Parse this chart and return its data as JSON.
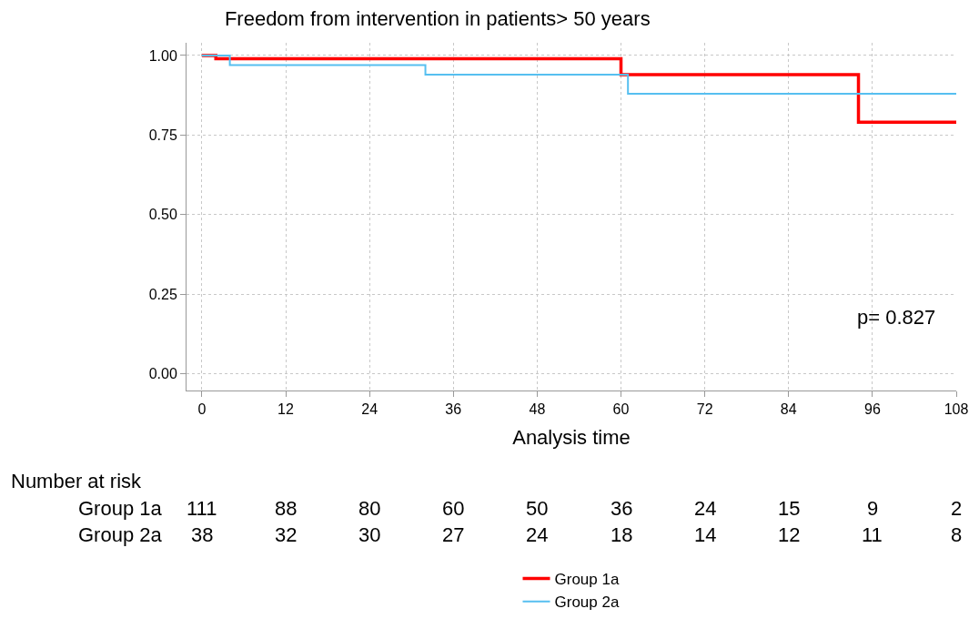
{
  "chart_data": {
    "type": "step",
    "title": "Freedom from intervention in patients> 50 years",
    "xlabel": "Analysis time",
    "series": [
      {
        "name": "Group 1a",
        "color": "#ff0000",
        "x": [
          0,
          2,
          60,
          94,
          108
        ],
        "values": [
          1.0,
          0.99,
          0.94,
          0.79,
          0.79
        ]
      },
      {
        "name": "Group 2a",
        "color": "#56bff0",
        "x": [
          0,
          4,
          32,
          61,
          108
        ],
        "values": [
          1.0,
          0.97,
          0.94,
          0.88,
          0.88
        ]
      }
    ],
    "xlim": [
      -2.2,
      108
    ],
    "xticks": [
      0,
      12,
      24,
      36,
      48,
      60,
      72,
      84,
      96,
      108
    ],
    "ylim": [
      -0.053,
      1.04
    ],
    "yticks": [
      {
        "value": 0,
        "label": "0.00"
      },
      {
        "value": 0.25,
        "label": "0.25"
      },
      {
        "value": 0.5,
        "label": "0.50"
      },
      {
        "value": 0.75,
        "label": "0.75"
      },
      {
        "value": 1,
        "label": "1.00"
      }
    ],
    "grid": true,
    "legend": "bottom",
    "annotations": [
      "p= 0.827",
      "Number at risk",
      "Group 1a",
      "111",
      "88",
      "80",
      "60",
      "50",
      "36",
      "24",
      "15",
      "9",
      "2",
      "Group 2a",
      "38",
      "32",
      "30",
      "27",
      "24",
      "18",
      "14",
      "12",
      "11",
      "8"
    ]
  }
}
